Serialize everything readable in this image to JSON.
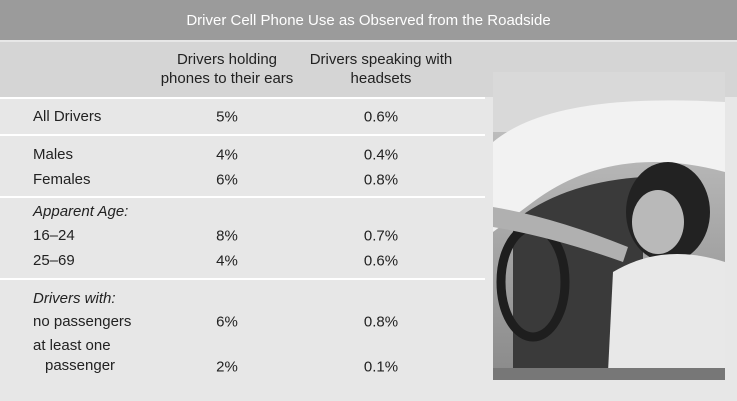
{
  "table": {
    "title": "Driver Cell Phone Use as Observed from the Roadside",
    "columns": [
      "Drivers holding phones to their ears",
      "Drivers speaking with headsets"
    ],
    "groups": [
      {
        "rows": [
          [
            "All Drivers",
            "5%",
            "0.6%"
          ]
        ]
      },
      {
        "rows": [
          [
            "Males",
            "4%",
            "0.4%"
          ],
          [
            "Females",
            "6%",
            "0.8%"
          ]
        ]
      },
      {
        "heading": "Apparent Age:",
        "rows": [
          [
            "16–24",
            "8%",
            "0.7%"
          ],
          [
            "25–69",
            "4%",
            "0.6%"
          ]
        ]
      },
      {
        "heading": "Drivers with:",
        "rows": [
          [
            "no passengers",
            "6%",
            "0.8%"
          ],
          [
            "at least one passenger",
            "2%",
            "0.1%"
          ]
        ]
      }
    ]
  }
}
